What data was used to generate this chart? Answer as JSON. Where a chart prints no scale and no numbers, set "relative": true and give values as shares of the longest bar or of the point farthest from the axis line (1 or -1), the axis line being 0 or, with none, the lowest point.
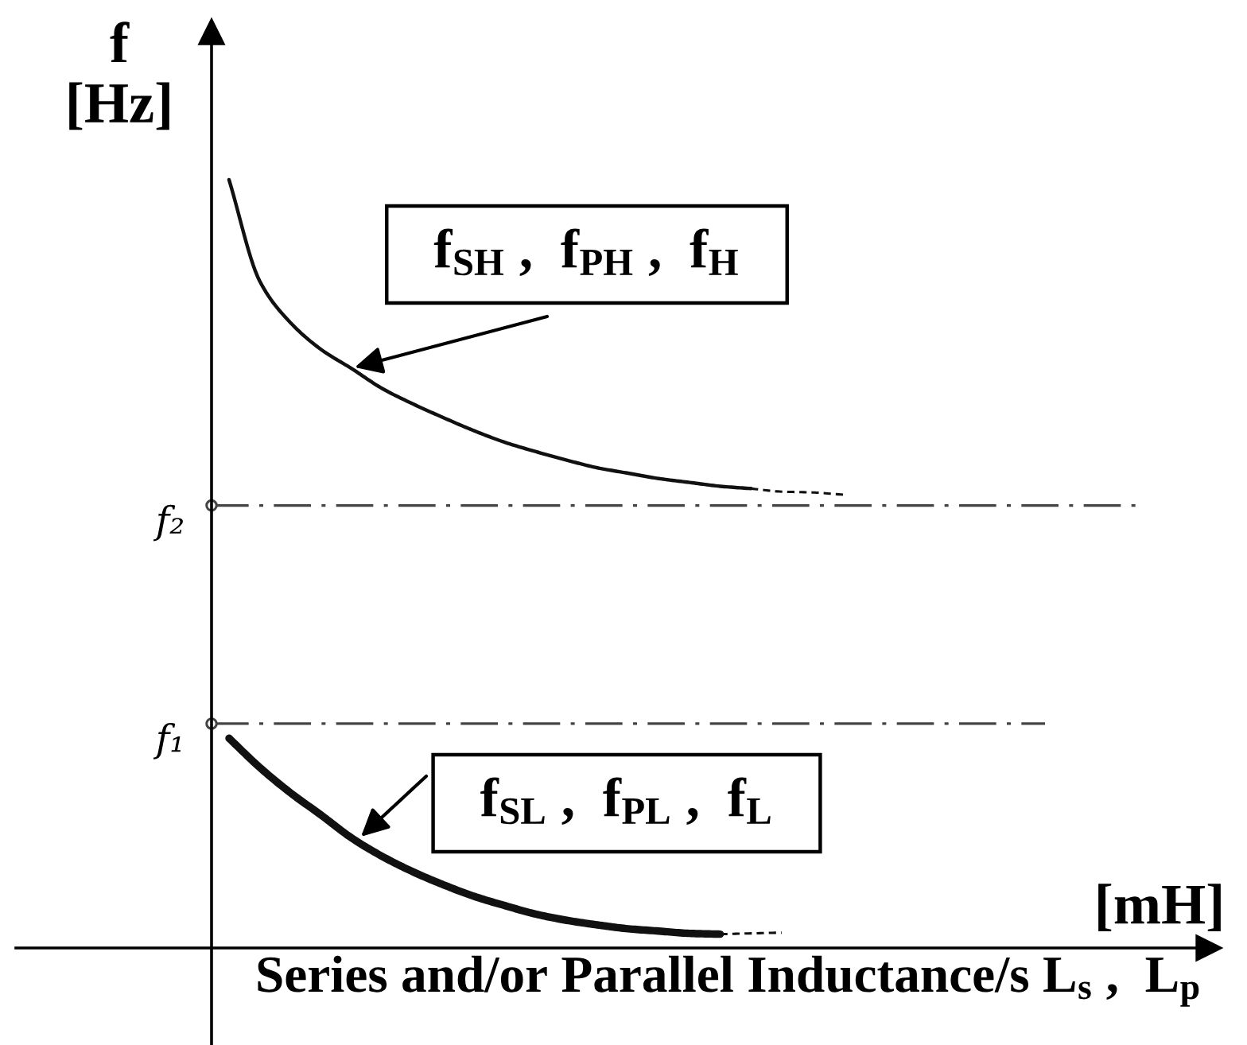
{
  "chart_data": {
    "type": "line",
    "relative": true,
    "categories": [
      null,
      null,
      null,
      null,
      null,
      null,
      null,
      null,
      null,
      null,
      null,
      null,
      null,
      null,
      null,
      null,
      null,
      null,
      null,
      null,
      null
    ],
    "ylabel": "f\n[Hz]",
    "xlabel": "Series and/or Parallel Inductance/s L$_{s}$ ,  L$_{p}$",
    "series": [
      {
        "color": "#111111",
        "values": [
          1.0,
          0.868,
          0.814,
          0.779,
          0.754,
          0.728,
          0.708,
          0.69,
          0.673,
          0.658,
          0.646,
          0.635,
          0.625,
          0.618,
          0.611,
          0.606,
          0.601,
          0.598,
          null,
          null,
          null
        ]
      },
      {
        "color": "#111111",
        "line_style": "dashed",
        "values": [
          null,
          null,
          null,
          null,
          null,
          null,
          null,
          null,
          null,
          null,
          null,
          null,
          null,
          null,
          null,
          null,
          null,
          0.598,
          0.594,
          0.593,
          0.59
        ]
      },
      {
        "color": "#111111",
        "values": [
          0.273,
          0.235,
          0.202,
          0.173,
          0.143,
          0.119,
          0.099,
          0.082,
          0.067,
          0.055,
          0.044,
          0.036,
          0.03,
          0.025,
          0.022,
          0.019,
          0.018,
          null,
          null,
          null,
          null
        ]
      },
      {
        "color": "#111111",
        "line_style": "dashed",
        "values": [
          null,
          null,
          null,
          null,
          null,
          null,
          null,
          null,
          null,
          null,
          null,
          null,
          null,
          null,
          null,
          null,
          0.018,
          0.019,
          0.02,
          null,
          null
        ]
      }
    ],
    "ref_lines": [
      {
        "axis": "y",
        "value": 0.576,
        "label": "f₂",
        "color": "#444444",
        "line_style": "dashed"
      },
      {
        "axis": "y",
        "value": 0.292,
        "label": "f₁",
        "color": "#444444",
        "line_style": "dashed"
      }
    ],
    "annotations": [
      "[mH]",
      "f$_{SH}$ ,  f$_{PH}$ ,  f$_{H}$",
      "f$_{SL}$ ,  f$_{PL}$ ,  f$_{L}$"
    ]
  }
}
